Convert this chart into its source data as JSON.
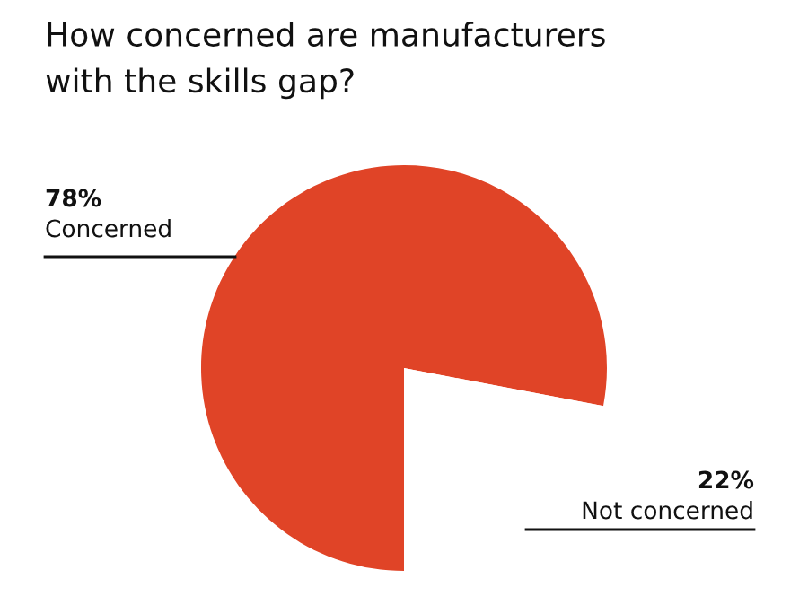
{
  "chart_data": {
    "type": "pie",
    "title": "How concerned are manufacturers\nwith the skills gap?",
    "categories": [
      "Concerned",
      "Not concerned"
    ],
    "values": [
      78,
      22
    ],
    "colors": [
      "#e04427",
      "#ffffff"
    ],
    "value_labels": [
      "78%",
      "22%"
    ],
    "legend": false
  }
}
